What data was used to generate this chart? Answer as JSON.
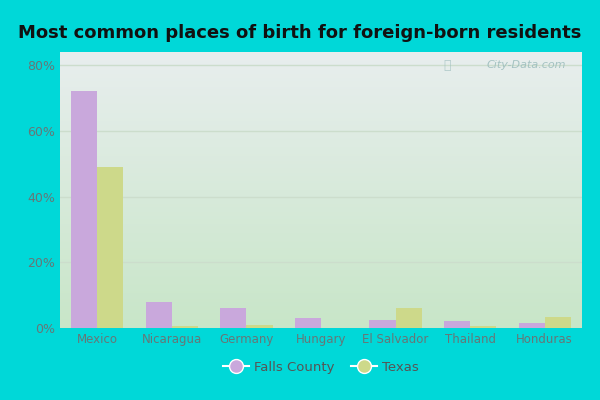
{
  "title": "Most common places of birth for foreign-born residents",
  "categories": [
    "Mexico",
    "Nicaragua",
    "Germany",
    "Hungary",
    "El Salvador",
    "Thailand",
    "Honduras"
  ],
  "falls_county": [
    72,
    8,
    6,
    3,
    2.5,
    2,
    1.5
  ],
  "texas": [
    49,
    0.5,
    1,
    0,
    6,
    0.5,
    3.5
  ],
  "falls_county_color": "#c9a8dc",
  "texas_color": "#cdd98a",
  "ylabel_ticks": [
    "0%",
    "20%",
    "40%",
    "60%",
    "80%"
  ],
  "ytick_vals": [
    0,
    20,
    40,
    60,
    80
  ],
  "ylim": [
    0,
    84
  ],
  "background_outer": "#00d8d8",
  "background_inner_top": "#e8eeee",
  "background_inner_bottom": "#d4eecc",
  "grid_color": "#ccddcc",
  "watermark": "City-Data.com",
  "legend_labels": [
    "Falls County",
    "Texas"
  ],
  "bar_width": 0.35,
  "title_fontsize": 13
}
